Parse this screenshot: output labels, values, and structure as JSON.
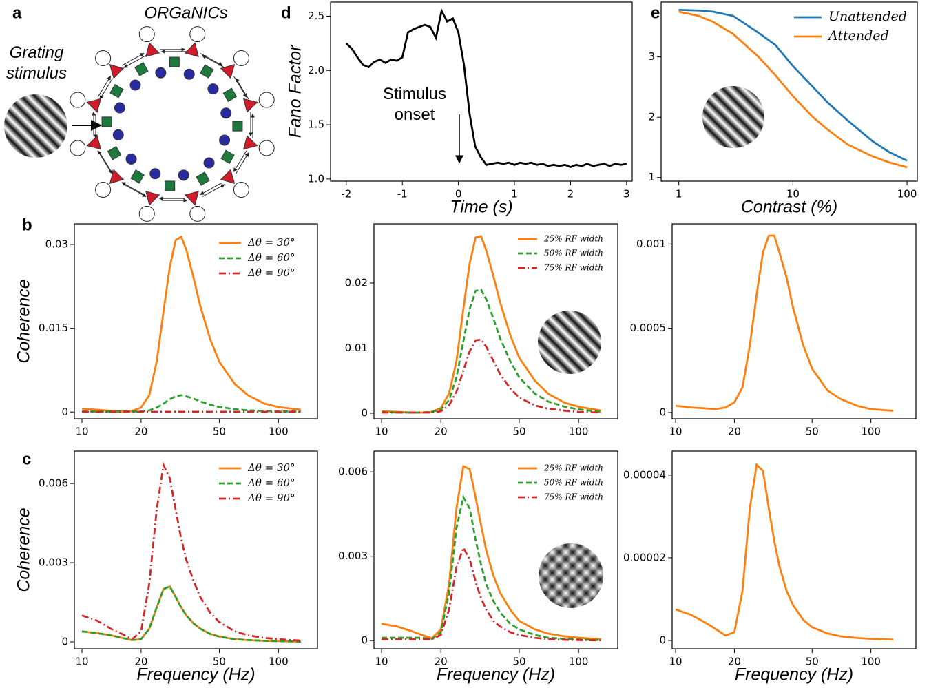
{
  "diagram": {
    "panel": "a",
    "title": "ORGaNICs",
    "stimulus_label": "Grating stimulus"
  },
  "chart_data": [
    {
      "type": "line",
      "panel": "d",
      "xlabel": "Time (s)",
      "ylabel": "Fano Factor",
      "annotation": "Stimulus onset",
      "xlim": [
        -2.28,
        3.1
      ],
      "ylim": [
        0.98,
        2.63
      ],
      "xticks": [
        -2,
        -1,
        0,
        1,
        2,
        3
      ],
      "yticks": [
        {
          "value": 1,
          "label": "1.0"
        },
        {
          "value": 1.5,
          "label": "1.5"
        },
        {
          "value": 2,
          "label": "2.0"
        },
        {
          "value": 2.5,
          "label": "2.5"
        }
      ],
      "x": [
        -2.0,
        -1.9,
        -1.8,
        -1.7,
        -1.6,
        -1.5,
        -1.4,
        -1.3,
        -1.2,
        -1.1,
        -1.0,
        -0.9,
        -0.8,
        -0.7,
        -0.6,
        -0.5,
        -0.4,
        -0.3,
        -0.2,
        -0.1,
        0.0,
        0.1,
        0.2,
        0.3,
        0.4,
        0.5,
        0.6,
        0.7,
        0.8,
        0.9,
        1.0,
        1.1,
        1.2,
        1.3,
        1.4,
        1.5,
        1.6,
        1.7,
        1.8,
        1.9,
        2.0,
        2.1,
        2.2,
        2.3,
        2.4,
        2.5,
        2.6,
        2.7,
        2.8,
        2.9,
        3.0
      ],
      "series": [
        {
          "color": "#000000",
          "linestyle": "solid",
          "values": [
            2.25,
            2.2,
            2.12,
            2.05,
            2.03,
            2.08,
            2.1,
            2.07,
            2.1,
            2.09,
            2.12,
            2.35,
            2.38,
            2.4,
            2.42,
            2.4,
            2.3,
            2.55,
            2.45,
            2.48,
            2.35,
            2.05,
            1.6,
            1.3,
            1.2,
            1.13,
            1.14,
            1.15,
            1.14,
            1.15,
            1.13,
            1.15,
            1.14,
            1.15,
            1.13,
            1.14,
            1.12,
            1.13,
            1.12,
            1.13,
            1.11,
            1.13,
            1.12,
            1.14,
            1.12,
            1.13,
            1.14,
            1.12,
            1.14,
            1.13,
            1.14
          ]
        }
      ]
    },
    {
      "type": "line",
      "panel": "e",
      "xlabel": "Contrast (%)",
      "xscale": "log",
      "legend": "upper right",
      "xlim": [
        0.7,
        123
      ],
      "ylim": [
        0.94,
        3.91
      ],
      "xticks": [
        1,
        10,
        100
      ],
      "yticks": [
        1,
        2,
        3
      ],
      "x": [
        1,
        1.5,
        2,
        3,
        5,
        7,
        10,
        15,
        20,
        30,
        50,
        70,
        100
      ],
      "series": [
        {
          "name": "Unattended",
          "color": "#1f77b4",
          "linestyle": "solid",
          "values": [
            3.78,
            3.77,
            3.75,
            3.68,
            3.4,
            3.2,
            2.85,
            2.5,
            2.25,
            1.95,
            1.6,
            1.42,
            1.28
          ]
        },
        {
          "name": "Attended",
          "color": "#ff7f0e",
          "linestyle": "solid",
          "values": [
            3.75,
            3.68,
            3.58,
            3.38,
            3.0,
            2.7,
            2.35,
            2.0,
            1.8,
            1.55,
            1.35,
            1.25,
            1.17
          ]
        }
      ]
    },
    {
      "type": "line",
      "panel": "b",
      "ylabel": "Coherence",
      "xscale": "log",
      "legend": "upper right",
      "xlim": [
        9.15,
        158
      ],
      "ylim": [
        -0.0012,
        0.0337
      ],
      "xticks": [
        10,
        20,
        50,
        100
      ],
      "yticks": [
        0,
        0.015,
        0.03
      ],
      "x": [
        10,
        12,
        14,
        16,
        18,
        20,
        22,
        24,
        26,
        28,
        30,
        32,
        34,
        37,
        40,
        45,
        50,
        60,
        70,
        85,
        100,
        130
      ],
      "series": [
        {
          "name": "Δθ = 30°",
          "color": "#ff7f0e",
          "linestyle": "solid",
          "values": [
            0.0006,
            0.0004,
            0.0002,
            0.0001,
            0.0002,
            0.0008,
            0.003,
            0.009,
            0.018,
            0.026,
            0.0308,
            0.0314,
            0.029,
            0.024,
            0.019,
            0.013,
            0.009,
            0.005,
            0.003,
            0.0015,
            0.0009,
            0.0004
          ]
        },
        {
          "name": "Δθ = 60°",
          "color": "#2ca02c",
          "linestyle": "dashed",
          "values": [
            0.0001,
            0.0001,
            0.0001,
            0.0001,
            0.0001,
            0.0001,
            0.0003,
            0.0008,
            0.0015,
            0.0023,
            0.0028,
            0.003,
            0.0028,
            0.0024,
            0.0019,
            0.0013,
            0.0009,
            0.0005,
            0.0003,
            0.0002,
            0.0001,
            0.0001
          ]
        },
        {
          "name": "Δθ = 90°",
          "color": "#d62728",
          "linestyle": "dashdot",
          "values": [
            5e-05,
            5e-05,
            5e-05,
            5e-05,
            5e-05,
            5e-05,
            5e-05,
            5e-05,
            5e-05,
            5e-05,
            5e-05,
            5e-05,
            5e-05,
            5e-05,
            5e-05,
            5e-05,
            5e-05,
            5e-05,
            5e-05,
            5e-05,
            5e-05,
            5e-05
          ]
        }
      ]
    },
    {
      "type": "line",
      "xscale": "log",
      "legend": "upper right",
      "xlim": [
        9.15,
        158
      ],
      "ylim": [
        -0.00085,
        0.0291
      ],
      "xticks": [
        10,
        20,
        50,
        100
      ],
      "yticks": [
        0,
        0.01,
        0.02
      ],
      "x": [
        10,
        12,
        14,
        16,
        18,
        20,
        22,
        24,
        26,
        28,
        30,
        32,
        34,
        37,
        40,
        45,
        50,
        60,
        70,
        85,
        100,
        130
      ],
      "series": [
        {
          "name": "25% RF width",
          "color": "#ff7f0e",
          "linestyle": "solid",
          "values": [
            0.0003,
            0.0002,
            0.0001,
            0.0001,
            0.0002,
            0.0008,
            0.003,
            0.008,
            0.016,
            0.023,
            0.027,
            0.0272,
            0.025,
            0.021,
            0.017,
            0.012,
            0.0085,
            0.005,
            0.003,
            0.0016,
            0.001,
            0.0004
          ]
        },
        {
          "name": "50% RF width",
          "color": "#2ca02c",
          "linestyle": "dashed",
          "values": [
            0.0002,
            0.0001,
            0.0001,
            0.0001,
            0.0002,
            0.0006,
            0.002,
            0.0055,
            0.011,
            0.016,
            0.0188,
            0.019,
            0.0175,
            0.0145,
            0.0115,
            0.008,
            0.0055,
            0.003,
            0.0018,
            0.001,
            0.0006,
            0.0002
          ]
        },
        {
          "name": "75% RF width",
          "color": "#d62728",
          "linestyle": "dashdot",
          "values": [
            0.0001,
            0.0001,
            0.0001,
            0.0001,
            0.0001,
            0.0003,
            0.0012,
            0.0033,
            0.0065,
            0.0095,
            0.0112,
            0.0113,
            0.0102,
            0.008,
            0.006,
            0.0038,
            0.0024,
            0.0012,
            0.0007,
            0.0004,
            0.0002,
            0.0001
          ]
        }
      ]
    },
    {
      "type": "line",
      "xscale": "log",
      "xlim": [
        9.6,
        170
      ],
      "ylim": [
        -3.7e-05,
        0.00112
      ],
      "xticks": [
        10,
        20,
        50,
        100
      ],
      "yticks": [
        0,
        0.0005,
        0.001
      ],
      "x": [
        10,
        12,
        14,
        16,
        18,
        20,
        22,
        24,
        26,
        28,
        30,
        32,
        34,
        37,
        40,
        45,
        50,
        60,
        70,
        85,
        100,
        130
      ],
      "series": [
        {
          "color": "#ff7f0e",
          "linestyle": "solid",
          "values": [
            4e-05,
            3e-05,
            2.5e-05,
            2e-05,
            3e-05,
            6e-05,
            0.00015,
            0.0004,
            0.0007,
            0.00095,
            0.00105,
            0.00105,
            0.00095,
            0.0008,
            0.00062,
            0.0004,
            0.00026,
            0.00013,
            8e-05,
            4e-05,
            2e-05,
            1e-05
          ]
        }
      ]
    },
    {
      "type": "line",
      "panel": "c",
      "ylabel": "Coherence",
      "xlabel": "Frequency (Hz)",
      "xscale": "log",
      "legend": "upper right",
      "xlim": [
        9.15,
        158
      ],
      "ylim": [
        -0.00026,
        0.00723
      ],
      "xticks": [
        10,
        20,
        50,
        100
      ],
      "yticks": [
        0,
        0.003,
        0.006
      ],
      "x": [
        10,
        12,
        14,
        16,
        18,
        20,
        22,
        24,
        26,
        28,
        30,
        32,
        34,
        37,
        40,
        45,
        50,
        60,
        70,
        85,
        100,
        130
      ],
      "series": [
        {
          "name": "Δθ = 30°",
          "color": "#ff7f0e",
          "linestyle": "solid",
          "values": [
            0.0004,
            0.00033,
            0.00025,
            0.00015,
            7e-05,
            0.0001,
            0.0005,
            0.0013,
            0.002,
            0.0021,
            0.0017,
            0.0013,
            0.001,
            0.0007,
            0.0005,
            0.0003,
            0.0002,
            0.0001,
            7e-05,
            4e-05,
            3e-05,
            1e-05
          ]
        },
        {
          "name": "Δθ = 60°",
          "color": "#2ca02c",
          "linestyle": "dashed",
          "values": [
            0.0004,
            0.00033,
            0.00025,
            0.00015,
            7e-05,
            0.0001,
            0.0005,
            0.0013,
            0.002,
            0.0021,
            0.0017,
            0.0013,
            0.001,
            0.0007,
            0.0005,
            0.0003,
            0.0002,
            0.0001,
            7e-05,
            4e-05,
            3e-05,
            1e-05
          ]
        },
        {
          "name": "Δθ = 90°",
          "color": "#d62728",
          "linestyle": "dashdot",
          "values": [
            0.001,
            0.0008,
            0.0005,
            0.0003,
            0.0001,
            0.0004,
            0.0022,
            0.005,
            0.0067,
            0.0062,
            0.005,
            0.0039,
            0.0031,
            0.0023,
            0.0017,
            0.0011,
            0.00075,
            0.0004,
            0.00025,
            0.00015,
            0.0001,
            5e-05
          ]
        }
      ]
    },
    {
      "type": "line",
      "xlabel": "Frequency (Hz)",
      "xscale": "log",
      "legend": "upper right",
      "xlim": [
        9.15,
        158
      ],
      "ylim": [
        -0.00029,
        0.00674
      ],
      "xticks": [
        10,
        20,
        50,
        100
      ],
      "yticks": [
        0,
        0.003,
        0.006
      ],
      "x": [
        10,
        12,
        14,
        16,
        18,
        20,
        22,
        24,
        26,
        28,
        30,
        32,
        34,
        37,
        40,
        45,
        50,
        60,
        70,
        85,
        100,
        130
      ],
      "series": [
        {
          "name": "25% RF width",
          "color": "#ff7f0e",
          "linestyle": "solid",
          "values": [
            0.0006,
            0.0005,
            0.00035,
            0.0002,
            8e-05,
            0.0004,
            0.002,
            0.0047,
            0.0062,
            0.0061,
            0.0051,
            0.0041,
            0.0032,
            0.0023,
            0.0017,
            0.0011,
            0.0007,
            0.0004,
            0.00025,
            0.00015,
            0.0001,
            5e-05
          ]
        },
        {
          "name": "50% RF width",
          "color": "#2ca02c",
          "linestyle": "dashed",
          "values": [
            0.0001,
            0.0001,
            0.0001,
            0.0001,
            5e-05,
            0.0003,
            0.0017,
            0.004,
            0.0051,
            0.0047,
            0.0036,
            0.0027,
            0.002,
            0.0014,
            0.001,
            0.0006,
            0.0004,
            0.0002,
            0.0001,
            6e-05,
            4e-05,
            2e-05
          ]
        },
        {
          "name": "75% RF width",
          "color": "#d62728",
          "linestyle": "dashdot",
          "values": [
            5e-05,
            5e-05,
            5e-05,
            5e-05,
            5e-05,
            0.0002,
            0.0011,
            0.0026,
            0.0033,
            0.0029,
            0.0021,
            0.0015,
            0.0011,
            0.0007,
            0.0005,
            0.0003,
            0.0002,
            0.0001,
            5e-05,
            3e-05,
            2e-05,
            1e-05
          ]
        }
      ]
    },
    {
      "type": "line",
      "xlabel": "Frequency (Hz)",
      "xscale": "log",
      "xlim": [
        9.6,
        170
      ],
      "ylim": [
        -2e-06,
        4.58e-05
      ],
      "xticks": [
        10,
        20,
        50,
        100
      ],
      "yticks": [
        0,
        2e-05,
        4e-05
      ],
      "x": [
        10,
        12,
        14,
        16,
        18,
        20,
        22,
        24,
        26,
        28,
        30,
        32,
        34,
        37,
        40,
        45,
        50,
        60,
        70,
        85,
        100,
        130
      ],
      "series": [
        {
          "color": "#ff7f0e",
          "linestyle": "solid",
          "values": [
            7.5e-06,
            6.2e-06,
            4.5e-06,
            2.8e-06,
            1.2e-06,
            2e-06,
            1.2e-05,
            3.2e-05,
            4.25e-05,
            4.1e-05,
            3.2e-05,
            2.4e-05,
            1.8e-05,
            1.2e-05,
            8.5e-06,
            5e-06,
            3.2e-06,
            1.7e-06,
            1e-06,
            6e-07,
            4e-07,
            2e-07
          ]
        }
      ]
    }
  ]
}
